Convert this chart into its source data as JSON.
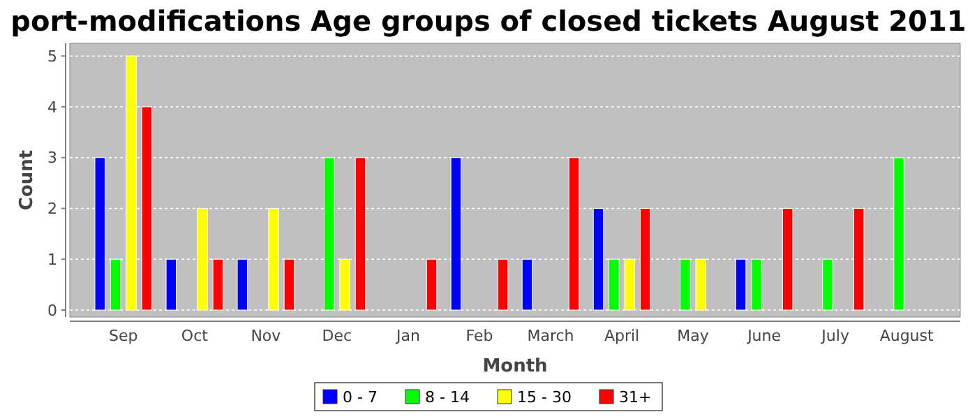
{
  "chart_data": {
    "type": "bar",
    "title": "port-modifications Age groups of closed tickets August 2011",
    "xlabel": "Month",
    "ylabel": "Count",
    "categories": [
      "Sep",
      "Oct",
      "Nov",
      "Dec",
      "Jan",
      "Feb",
      "March",
      "April",
      "May",
      "June",
      "July",
      "August"
    ],
    "series": [
      {
        "name": "0 - 7",
        "color": "#0000ff",
        "values": [
          3,
          1,
          1,
          0,
          0,
          3,
          1,
          2,
          0,
          1,
          0,
          0
        ]
      },
      {
        "name": "8 - 14",
        "color": "#00ff00",
        "values": [
          1,
          0,
          0,
          3,
          0,
          0,
          0,
          1,
          1,
          1,
          1,
          3
        ]
      },
      {
        "name": "15 - 30",
        "color": "#ffff00",
        "values": [
          5,
          2,
          2,
          1,
          0,
          0,
          0,
          1,
          1,
          0,
          0,
          0
        ]
      },
      {
        "name": "31+",
        "color": "#ff0000",
        "values": [
          4,
          1,
          1,
          3,
          1,
          1,
          3,
          2,
          0,
          2,
          2,
          0
        ]
      }
    ],
    "ylim": [
      0,
      5.25
    ],
    "yticks": [
      0,
      1,
      2,
      3,
      4,
      5
    ],
    "grid": "y",
    "legend": "bottom"
  }
}
